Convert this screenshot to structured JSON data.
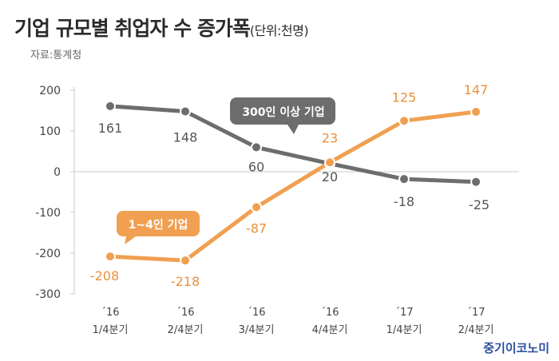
{
  "title": "기업 규모별 취업자 수 증가폭",
  "unit": "(단위:천명)",
  "source": "자료:통계청",
  "brand": "중기이코노미",
  "chart_data": {
    "type": "line",
    "categories": [
      [
        "´16",
        "1/4분기"
      ],
      [
        "´16",
        "2/4분기"
      ],
      [
        "´16",
        "3/4분기"
      ],
      [
        "´16",
        "4/4분기"
      ],
      [
        "´17",
        "1/4분기"
      ],
      [
        "´17",
        "2/4분기"
      ]
    ],
    "ylim": [
      -300,
      200
    ],
    "yticks": [
      200,
      100,
      0,
      -100,
      -200,
      -300
    ],
    "grid": false,
    "series": [
      {
        "name": "300인 이상 기업",
        "values": [
          161,
          148,
          60,
          20,
          -18,
          -25
        ],
        "color": "#6d6d6d",
        "label_color": "#555555"
      },
      {
        "name": "1~4인 기업",
        "values": [
          -208,
          -218,
          -87,
          23,
          125,
          147
        ],
        "color": "#f0a050",
        "label_color": "#e8913a"
      }
    ]
  }
}
